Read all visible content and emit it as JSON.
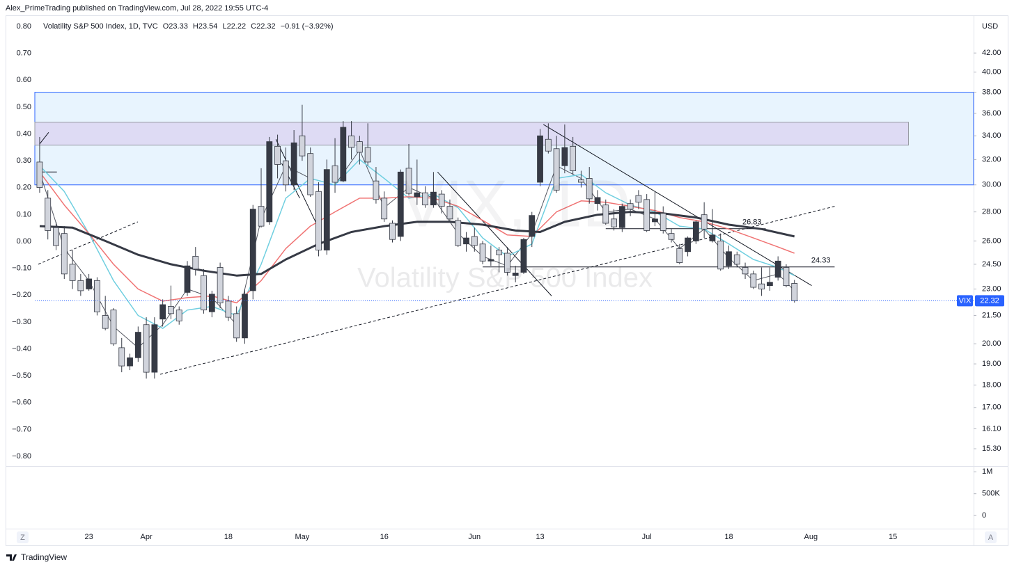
{
  "header": {
    "publisher": "Alex_PrimeTrading published on TradingView.com, Jul 28, 2022 19:55 UTC-4"
  },
  "chart_data": {
    "type": "candlestick",
    "legend": {
      "symbol": "Volatility S&P 500 Index, 1D, TVC",
      "open": "O23.33",
      "high": "H23.54",
      "low": "L22.22",
      "close": "C22.32",
      "change": "−0.91 (−3.92%)"
    },
    "watermark": [
      "VIX, 1D",
      "Volatility S&P 500 Index"
    ],
    "currency": "USD",
    "price_tag": "VIX",
    "open": [
      31.8,
      29.0,
      26.9,
      26.5,
      24.5,
      23.5,
      23.0,
      23.5,
      21.5,
      21.8,
      19.8,
      18.9,
      19.3,
      21.0,
      18.6,
      21.3,
      22.0,
      21.8,
      22.8,
      25.0,
      23.8,
      21.7,
      24.3,
      22.3,
      21.6,
      20.3,
      22.9,
      28.4,
      27.3,
      33.1,
      31.9,
      30.0,
      34.0,
      32.5,
      29.5,
      25.4,
      31.5,
      30.3,
      34.0,
      33.5,
      33.0,
      30.3,
      29.0,
      27.2,
      26.3,
      31.3,
      29.1,
      29.4,
      28.5,
      29.3,
      28.4,
      27.4,
      25.8,
      26.3,
      25.8,
      24.7,
      25.4,
      25.2,
      23.8,
      24.0,
      26.3,
      30.2,
      33.7,
      32.9,
      31.5,
      33.1,
      30.4,
      30.5,
      28.6,
      28.5,
      27.5,
      26.9,
      28.6,
      29.2,
      28.9,
      27.3,
      27.9,
      26.5,
      25.5,
      25.3,
      26.0,
      27.8,
      26.0,
      26.0,
      24.4,
      25.1,
      24.3,
      23.9,
      23.3,
      23.2,
      23.7,
      24.3,
      23.33
    ],
    "high": [
      33.9,
      29.6,
      27.3,
      27.0,
      25.4,
      23.9,
      23.9,
      23.7,
      22.6,
      21.9,
      20.3,
      19.5,
      20.9,
      21.4,
      21.4,
      22.4,
      23.2,
      22.0,
      24.7,
      25.6,
      24.2,
      22.9,
      24.6,
      22.6,
      22.0,
      23.0,
      28.5,
      31.3,
      33.9,
      34.1,
      33.0,
      34.5,
      36.8,
      33.0,
      30.2,
      32.0,
      33.8,
      35.3,
      35.3,
      34.0,
      35.1,
      31.4,
      29.5,
      27.4,
      31.2,
      33.3,
      32.0,
      29.9,
      31.0,
      29.6,
      28.9,
      27.6,
      26.6,
      26.9,
      26.0,
      25.7,
      25.6,
      25.6,
      24.4,
      26.2,
      28.0,
      34.6,
      35.1,
      34.0,
      35.0,
      33.9,
      31.1,
      31.4,
      29.6,
      28.9,
      28.2,
      28.6,
      28.9,
      29.6,
      29.3,
      29.5,
      28.4,
      26.8,
      25.8,
      26.3,
      27.4,
      28.7,
      28.2,
      26.5,
      25.7,
      25.3,
      24.6,
      24.1,
      24.3,
      24.3,
      25.0,
      24.5,
      23.54
    ],
    "low": [
      29.4,
      26.1,
      25.4,
      23.6,
      23.0,
      22.6,
      22.9,
      21.5,
      20.7,
      19.9,
      18.6,
      18.7,
      19.1,
      18.3,
      18.3,
      20.9,
      21.3,
      21.0,
      22.6,
      23.8,
      21.6,
      21.4,
      21.9,
      21.2,
      20.1,
      20.0,
      22.4,
      26.9,
      27.1,
      30.5,
      29.5,
      29.6,
      31.9,
      29.1,
      25.0,
      25.1,
      29.4,
      30.2,
      32.0,
      31.6,
      31.5,
      28.6,
      27.3,
      25.9,
      26.0,
      29.2,
      28.5,
      28.3,
      28.3,
      27.9,
      27.3,
      25.6,
      25.3,
      25.3,
      24.5,
      24.4,
      24.0,
      23.8,
      23.4,
      23.9,
      25.6,
      29.9,
      32.5,
      29.4,
      30.9,
      30.8,
      29.8,
      28.6,
      28.1,
      27.1,
      26.7,
      26.6,
      27.7,
      28.2,
      26.6,
      27.0,
      26.5,
      25.9,
      24.5,
      25.0,
      25.8,
      26.2,
      25.9,
      24.1,
      24.2,
      24.3,
      23.6,
      23.0,
      22.6,
      22.9,
      23.5,
      23.1,
      22.22
    ],
    "close": [
      29.8,
      26.7,
      25.7,
      23.9,
      23.5,
      22.9,
      23.6,
      21.7,
      20.8,
      20.0,
      18.9,
      19.3,
      20.6,
      18.6,
      21.0,
      22.1,
      21.6,
      21.2,
      24.4,
      24.2,
      21.8,
      22.7,
      22.2,
      21.4,
      20.3,
      22.7,
      28.2,
      27.0,
      33.5,
      31.6,
      30.0,
      33.4,
      32.3,
      29.25,
      25.4,
      31.2,
      30.2,
      34.75,
      33.0,
      32.6,
      31.8,
      28.9,
      27.5,
      26.1,
      31.0,
      29.35,
      29.4,
      28.5,
      29.45,
      28.4,
      27.5,
      25.7,
      26.2,
      25.7,
      24.7,
      24.8,
      25.1,
      24.0,
      23.96,
      26.1,
      27.75,
      34.0,
      32.7,
      29.6,
      33.0,
      31.1,
      30.2,
      28.95,
      29.05,
      27.2,
      26.95,
      28.4,
      28.2,
      28.7,
      26.7,
      27.5,
      26.7,
      26.1,
      24.6,
      26.2,
      27.3,
      26.8,
      26.4,
      24.2,
      25.3,
      24.5,
      23.9,
      23.1,
      23.0,
      23.4,
      24.7,
      23.2,
      22.32
    ],
    "xlim": [
      -0.59,
      113.84
    ],
    "xticks": [
      {
        "value": 6,
        "label": "23"
      },
      {
        "value": 13,
        "label": "Apr"
      },
      {
        "value": 23,
        "label": "18"
      },
      {
        "value": 32,
        "label": "May"
      },
      {
        "value": 42,
        "label": "16"
      },
      {
        "value": 53,
        "label": "Jun"
      },
      {
        "value": 61,
        "label": "13"
      },
      {
        "value": 74,
        "label": "Jul"
      },
      {
        "value": 84,
        "label": "18"
      },
      {
        "value": 94,
        "label": "Aug"
      },
      {
        "value": 104,
        "label": "15"
      }
    ],
    "ylim": [
      14.64,
      45.75
    ],
    "log_scale": true,
    "yticks": [
      {
        "value": 42,
        "label": "42.00"
      },
      {
        "value": 40,
        "label": "40.00"
      },
      {
        "value": 38,
        "label": "38.00"
      },
      {
        "value": 36,
        "label": "36.00"
      },
      {
        "value": 34,
        "label": "34.00"
      },
      {
        "value": 32,
        "label": "32.00"
      },
      {
        "value": 30,
        "label": "30.00"
      },
      {
        "value": 28,
        "label": "28.00"
      },
      {
        "value": 26,
        "label": "26.00"
      },
      {
        "value": 24.5,
        "label": "24.50"
      },
      {
        "value": 23,
        "label": "23.00"
      },
      {
        "value": 21.5,
        "label": "21.50"
      },
      {
        "value": 20,
        "label": "20.00"
      },
      {
        "value": 19,
        "label": "19.00"
      },
      {
        "value": 18,
        "label": "18.00"
      },
      {
        "value": 17,
        "label": "17.00"
      },
      {
        "value": 16.1,
        "label": "16.10"
      },
      {
        "value": 15.3,
        "label": "15.30"
      }
    ],
    "y2lim": [
      -0.836,
      0.826
    ],
    "y2ticks": [
      {
        "value": 0.8,
        "label": "0.80"
      },
      {
        "value": 0.7,
        "label": "0.70"
      },
      {
        "value": 0.6,
        "label": "0.60"
      },
      {
        "value": 0.5,
        "label": "0.50"
      },
      {
        "value": 0.4,
        "label": "0.40"
      },
      {
        "value": 0.3,
        "label": "0.30"
      },
      {
        "value": 0.2,
        "label": "0.20"
      },
      {
        "value": 0.1,
        "label": "0.10"
      },
      {
        "value": 0,
        "label": "0.00"
      },
      {
        "value": -0.1,
        "label": "−0.10"
      },
      {
        "value": -0.2,
        "label": "−0.20"
      },
      {
        "value": -0.3,
        "label": "−0.30"
      },
      {
        "value": -0.4,
        "label": "−0.40"
      },
      {
        "value": -0.5,
        "label": "−0.50"
      },
      {
        "value": -0.6,
        "label": "−0.60"
      },
      {
        "value": -0.7,
        "label": "−0.70"
      },
      {
        "value": -0.8,
        "label": "−0.80"
      }
    ],
    "grid": false,
    "colors": {
      "up": "#363a45",
      "down": "#d1d4dc",
      "border": "#363a45",
      "tag": "#2962ff"
    },
    "moving_averages": [
      {
        "color": "#555862",
        "width": 1,
        "x": [
          0,
          3,
          6,
          9,
          12,
          15,
          18,
          21,
          24,
          27,
          30,
          33,
          36,
          39,
          42,
          45,
          48,
          51,
          54,
          57,
          60,
          63,
          66,
          69,
          72,
          75,
          78,
          81,
          84,
          87,
          90,
          92
        ],
        "values": [
          31.0,
          25.5,
          23.5,
          20.9,
          19.8,
          21.0,
          23.0,
          22.5,
          21.0,
          27.5,
          31.5,
          30.5,
          30.0,
          32.8,
          28.3,
          29.8,
          29.0,
          26.5,
          25.0,
          24.4,
          26.5,
          31.5,
          30.5,
          28.0,
          28.2,
          27.5,
          25.5,
          26.8,
          24.9,
          23.5,
          23.9,
          22.9
        ]
      },
      {
        "color": "#70cfe0",
        "width": 1.5,
        "x": [
          0,
          3,
          6,
          9,
          12,
          15,
          18,
          21,
          24,
          27,
          30,
          33,
          36,
          39,
          42,
          45,
          48,
          51,
          54,
          57,
          60,
          63,
          66,
          69,
          72,
          75,
          78,
          81,
          84,
          87,
          90,
          92
        ],
        "values": [
          31.5,
          29.5,
          26.5,
          23.5,
          21.5,
          20.8,
          21.8,
          22.0,
          21.5,
          24.5,
          29.0,
          30.5,
          30.0,
          32.0,
          30.5,
          29.0,
          29.3,
          28.3,
          26.2,
          25.0,
          25.8,
          30.5,
          30.8,
          29.4,
          28.5,
          28.0,
          27.0,
          26.8,
          25.8,
          24.8,
          24.3,
          23.8
        ]
      },
      {
        "color": "#f07373",
        "width": 1.5,
        "x": [
          0,
          3,
          6,
          9,
          12,
          15,
          18,
          21,
          24,
          27,
          30,
          33,
          36,
          39,
          42,
          45,
          48,
          51,
          54,
          57,
          60,
          63,
          66,
          69,
          72,
          75,
          78,
          81,
          84,
          87,
          90,
          92
        ],
        "values": [
          31.0,
          28.5,
          26.5,
          24.5,
          23.0,
          22.3,
          22.5,
          22.6,
          22.2,
          23.5,
          25.5,
          27.0,
          28.0,
          29.0,
          29.0,
          29.1,
          29.0,
          28.4,
          27.4,
          26.4,
          26.3,
          28.0,
          28.8,
          28.7,
          28.4,
          28.1,
          27.6,
          27.3,
          26.8,
          26.2,
          25.6,
          25.2
        ]
      },
      {
        "color": "#363a45",
        "width": 3,
        "x": [
          0,
          4,
          8,
          12,
          16,
          20,
          24,
          27,
          30,
          34,
          38,
          42,
          46,
          50,
          54,
          58,
          61,
          64,
          68,
          72,
          76,
          80,
          84,
          88,
          92
        ],
        "values": [
          27.0,
          26.9,
          26.0,
          25.1,
          24.5,
          24.1,
          23.8,
          23.9,
          24.8,
          25.8,
          26.6,
          27.0,
          27.3,
          27.3,
          27.1,
          26.7,
          26.6,
          27.3,
          27.8,
          28.0,
          27.9,
          27.6,
          27.1,
          26.8,
          26.3
        ]
      }
    ],
    "zones": [
      {
        "color": "rgba(33,150,243,0.1)",
        "border": "#2962ff",
        "x": [
          -0.59,
          113.84
        ],
        "price": [
          30,
          38
        ]
      },
      {
        "color": "rgba(156,39,176,0.12)",
        "border": "#9598a1",
        "x": [
          -1.7,
          105.9
        ],
        "price": [
          33.2,
          35.2
        ]
      }
    ],
    "levels": [
      {
        "price": 26.83,
        "x": [
          69,
          88.5
        ]
      },
      {
        "price": 24.33,
        "x": [
          54,
          96.9
        ]
      }
    ],
    "trendlines": [
      {
        "dashed": true,
        "x": [
          -0.17,
          11.97
        ],
        "price": [
          24.5,
          27.3
        ]
      },
      {
        "dashed": true,
        "x": [
          14.7,
          96.9
        ],
        "price": [
          18.5,
          28.4
        ]
      },
      {
        "dashed": false,
        "x": [
          61.4,
          94.1
        ],
        "price": [
          35.0,
          23.2
        ]
      },
      {
        "dashed": false,
        "x": [
          48.5,
          62.4
        ],
        "price": [
          31.0,
          22.6
        ]
      },
      {
        "dashed": false,
        "x": [
          28.8,
          33.8
        ],
        "price": [
          33.7,
          27.1
        ]
      },
      {
        "dashed": false,
        "x": [
          29.5,
          31.7
        ],
        "price": [
          31.7,
          29.0
        ]
      },
      {
        "dashed": false,
        "x": [
          0,
          1.1
        ],
        "price": [
          33.3,
          34.3
        ]
      },
      {
        "dashed": false,
        "x": [
          0,
          2.1
        ],
        "price": [
          31.0,
          31.0
        ]
      }
    ],
    "volume_pane": {
      "ylim": [
        -300000,
        1100000
      ],
      "yticks": [
        {
          "value": 1000000,
          "label": "1M"
        },
        {
          "value": 500000,
          "label": "500K"
        },
        0
      ]
    }
  },
  "buttons": [
    "Z",
    "A"
  ],
  "footer": "TradingView"
}
